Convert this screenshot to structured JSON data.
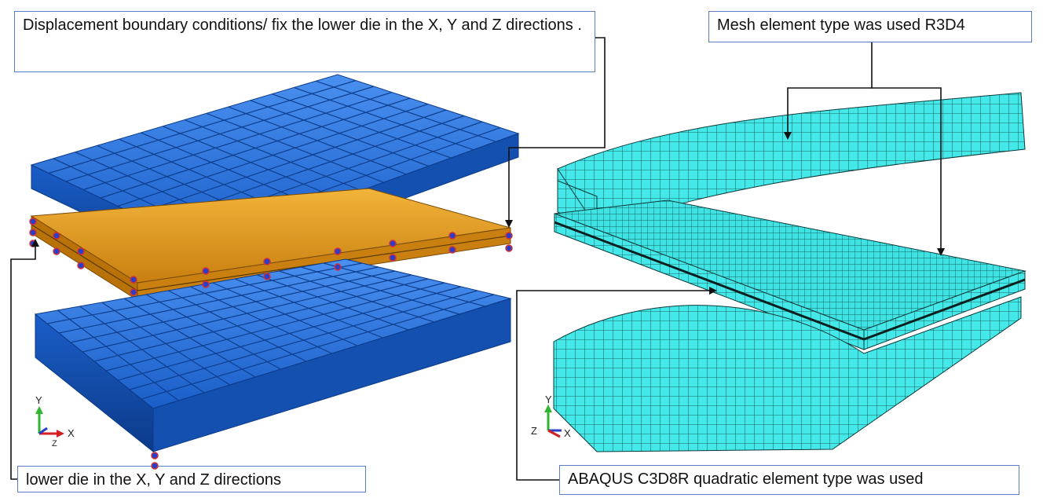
{
  "callouts": {
    "boundary_conditions": "Displacement boundary conditions/ fix the lower die in the X, Y and Z directions .",
    "mesh_r3d4": "Mesh element type was used R3D4",
    "lower_die": "lower die in the X, Y and Z directions",
    "mesh_c3d8r": "ABAQUS C3D8R quadratic element type was used"
  },
  "triads": {
    "left": {
      "y": "Y",
      "x": "X",
      "z": "Z"
    },
    "right": {
      "y": "Y",
      "x": "X",
      "z": "Z"
    }
  },
  "colors": {
    "die_blue": "#1f6fd6",
    "die_blue_dark": "#0f3f8a",
    "sheet_orange": "#e8a020",
    "mesh_cyan": "#3fe6e6",
    "mesh_edge": "#0d3a3a",
    "callout_border": "#5b7fc7"
  }
}
